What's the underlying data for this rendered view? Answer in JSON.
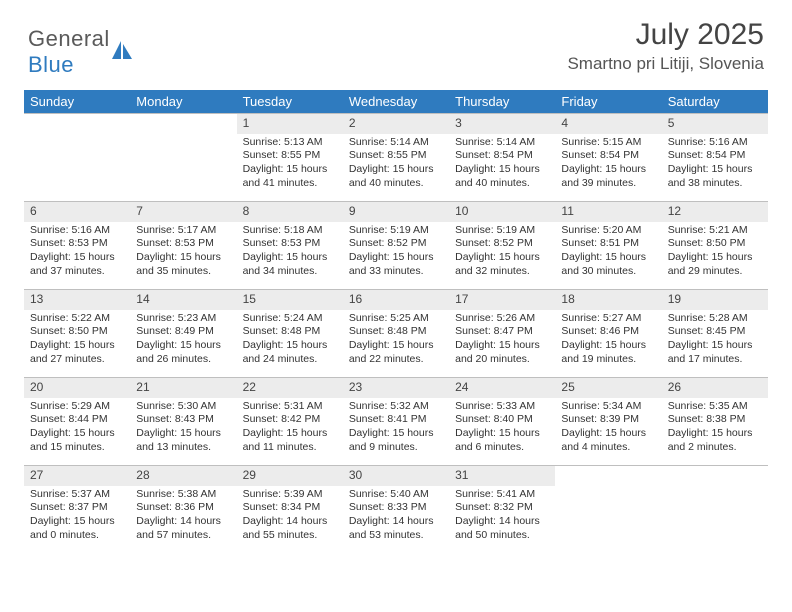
{
  "logo": {
    "text1": "General",
    "text2": "Blue"
  },
  "title": "July 2025",
  "location": "Smartno pri Litiji, Slovenia",
  "colors": {
    "header_bg": "#2f7bbf",
    "header_text": "#ffffff",
    "daynum_bg": "#ececec",
    "border": "#bfbfbf",
    "text": "#333333"
  },
  "weekdays": [
    "Sunday",
    "Monday",
    "Tuesday",
    "Wednesday",
    "Thursday",
    "Friday",
    "Saturday"
  ],
  "weeks": [
    [
      null,
      null,
      {
        "n": "1",
        "sr": "5:13 AM",
        "ss": "8:55 PM",
        "dl": "15 hours and 41 minutes."
      },
      {
        "n": "2",
        "sr": "5:14 AM",
        "ss": "8:55 PM",
        "dl": "15 hours and 40 minutes."
      },
      {
        "n": "3",
        "sr": "5:14 AM",
        "ss": "8:54 PM",
        "dl": "15 hours and 40 minutes."
      },
      {
        "n": "4",
        "sr": "5:15 AM",
        "ss": "8:54 PM",
        "dl": "15 hours and 39 minutes."
      },
      {
        "n": "5",
        "sr": "5:16 AM",
        "ss": "8:54 PM",
        "dl": "15 hours and 38 minutes."
      }
    ],
    [
      {
        "n": "6",
        "sr": "5:16 AM",
        "ss": "8:53 PM",
        "dl": "15 hours and 37 minutes."
      },
      {
        "n": "7",
        "sr": "5:17 AM",
        "ss": "8:53 PM",
        "dl": "15 hours and 35 minutes."
      },
      {
        "n": "8",
        "sr": "5:18 AM",
        "ss": "8:53 PM",
        "dl": "15 hours and 34 minutes."
      },
      {
        "n": "9",
        "sr": "5:19 AM",
        "ss": "8:52 PM",
        "dl": "15 hours and 33 minutes."
      },
      {
        "n": "10",
        "sr": "5:19 AM",
        "ss": "8:52 PM",
        "dl": "15 hours and 32 minutes."
      },
      {
        "n": "11",
        "sr": "5:20 AM",
        "ss": "8:51 PM",
        "dl": "15 hours and 30 minutes."
      },
      {
        "n": "12",
        "sr": "5:21 AM",
        "ss": "8:50 PM",
        "dl": "15 hours and 29 minutes."
      }
    ],
    [
      {
        "n": "13",
        "sr": "5:22 AM",
        "ss": "8:50 PM",
        "dl": "15 hours and 27 minutes."
      },
      {
        "n": "14",
        "sr": "5:23 AM",
        "ss": "8:49 PM",
        "dl": "15 hours and 26 minutes."
      },
      {
        "n": "15",
        "sr": "5:24 AM",
        "ss": "8:48 PM",
        "dl": "15 hours and 24 minutes."
      },
      {
        "n": "16",
        "sr": "5:25 AM",
        "ss": "8:48 PM",
        "dl": "15 hours and 22 minutes."
      },
      {
        "n": "17",
        "sr": "5:26 AM",
        "ss": "8:47 PM",
        "dl": "15 hours and 20 minutes."
      },
      {
        "n": "18",
        "sr": "5:27 AM",
        "ss": "8:46 PM",
        "dl": "15 hours and 19 minutes."
      },
      {
        "n": "19",
        "sr": "5:28 AM",
        "ss": "8:45 PM",
        "dl": "15 hours and 17 minutes."
      }
    ],
    [
      {
        "n": "20",
        "sr": "5:29 AM",
        "ss": "8:44 PM",
        "dl": "15 hours and 15 minutes."
      },
      {
        "n": "21",
        "sr": "5:30 AM",
        "ss": "8:43 PM",
        "dl": "15 hours and 13 minutes."
      },
      {
        "n": "22",
        "sr": "5:31 AM",
        "ss": "8:42 PM",
        "dl": "15 hours and 11 minutes."
      },
      {
        "n": "23",
        "sr": "5:32 AM",
        "ss": "8:41 PM",
        "dl": "15 hours and 9 minutes."
      },
      {
        "n": "24",
        "sr": "5:33 AM",
        "ss": "8:40 PM",
        "dl": "15 hours and 6 minutes."
      },
      {
        "n": "25",
        "sr": "5:34 AM",
        "ss": "8:39 PM",
        "dl": "15 hours and 4 minutes."
      },
      {
        "n": "26",
        "sr": "5:35 AM",
        "ss": "8:38 PM",
        "dl": "15 hours and 2 minutes."
      }
    ],
    [
      {
        "n": "27",
        "sr": "5:37 AM",
        "ss": "8:37 PM",
        "dl": "15 hours and 0 minutes."
      },
      {
        "n": "28",
        "sr": "5:38 AM",
        "ss": "8:36 PM",
        "dl": "14 hours and 57 minutes."
      },
      {
        "n": "29",
        "sr": "5:39 AM",
        "ss": "8:34 PM",
        "dl": "14 hours and 55 minutes."
      },
      {
        "n": "30",
        "sr": "5:40 AM",
        "ss": "8:33 PM",
        "dl": "14 hours and 53 minutes."
      },
      {
        "n": "31",
        "sr": "5:41 AM",
        "ss": "8:32 PM",
        "dl": "14 hours and 50 minutes."
      },
      null,
      null
    ]
  ],
  "labels": {
    "sunrise": "Sunrise: ",
    "sunset": "Sunset: ",
    "daylight": "Daylight: "
  }
}
